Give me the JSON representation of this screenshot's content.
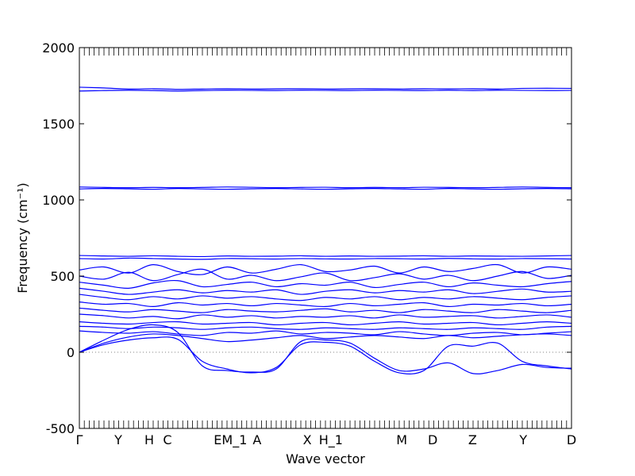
{
  "chart_data": {
    "type": "line",
    "title": "",
    "xlabel": "Wave vector",
    "ylabel": "Frequency (cm⁻¹)",
    "ylim": [
      -500,
      2000
    ],
    "xlim": [
      0,
      1
    ],
    "grid": false,
    "legend": "none",
    "line_color": "#0000ff",
    "zero_line_color": "#808080",
    "y_ticks": [
      -500,
      0,
      500,
      1000,
      1500,
      2000
    ],
    "path_labels": [
      {
        "label": "Γ",
        "x": 0.0
      },
      {
        "label": "Y",
        "x": 0.079
      },
      {
        "label": "H",
        "x": 0.142
      },
      {
        "label": "C",
        "x": 0.179
      },
      {
        "label": "EM_1",
        "x": 0.307
      },
      {
        "label": "A",
        "x": 0.361
      },
      {
        "label": "X",
        "x": 0.463
      },
      {
        "label": "H_1",
        "x": 0.511
      },
      {
        "label": "M",
        "x": 0.655
      },
      {
        "label": "D",
        "x": 0.718
      },
      {
        "label": "Z",
        "x": 0.799
      },
      {
        "label": "Y",
        "x": 0.902
      },
      {
        "label": "D",
        "x": 1.0
      }
    ],
    "x_sample": [
      0,
      0.05,
      0.1,
      0.15,
      0.2,
      0.25,
      0.3,
      0.35,
      0.4,
      0.45,
      0.5,
      0.55,
      0.6,
      0.65,
      0.7,
      0.75,
      0.8,
      0.85,
      0.9,
      0.95,
      1.0
    ],
    "series": [
      {
        "values": [
          1740,
          1735,
          1728,
          1730,
          1726,
          1728,
          1730,
          1728,
          1729,
          1730,
          1728,
          1729,
          1730,
          1728,
          1730,
          1729,
          1730,
          1728,
          1732,
          1733,
          1732
        ]
      },
      {
        "values": [
          1715,
          1718,
          1720,
          1718,
          1715,
          1718,
          1720,
          1719,
          1718,
          1720,
          1719,
          1718,
          1720,
          1719,
          1718,
          1720,
          1718,
          1720,
          1719,
          1718,
          1719
        ]
      },
      {
        "values": [
          1085,
          1082,
          1080,
          1082,
          1080,
          1082,
          1085,
          1083,
          1080,
          1082,
          1083,
          1080,
          1082,
          1080,
          1083,
          1082,
          1080,
          1082,
          1085,
          1082,
          1080
        ]
      },
      {
        "values": [
          1072,
          1075,
          1073,
          1070,
          1075,
          1072,
          1070,
          1073,
          1075,
          1072,
          1070,
          1073,
          1075,
          1072,
          1070,
          1075,
          1072,
          1070,
          1073,
          1075,
          1073
        ]
      },
      {
        "values": [
          635,
          632,
          630,
          633,
          630,
          628,
          632,
          630,
          631,
          633,
          630,
          632,
          630,
          631,
          633,
          630,
          632,
          631,
          630,
          632,
          635
        ]
      },
      {
        "values": [
          615,
          612,
          618,
          615,
          612,
          610,
          615,
          614,
          612,
          615,
          613,
          612,
          615,
          614,
          612,
          616,
          613,
          612,
          615,
          614,
          612
        ]
      },
      {
        "values": [
          540,
          560,
          520,
          575,
          530,
          510,
          560,
          520,
          545,
          575,
          530,
          540,
          565,
          520,
          560,
          530,
          550,
          575,
          520,
          560,
          545
        ]
      },
      {
        "values": [
          500,
          480,
          525,
          470,
          510,
          545,
          480,
          505,
          470,
          495,
          520,
          470,
          490,
          515,
          480,
          505,
          470,
          500,
          530,
          485,
          505
        ]
      },
      {
        "values": [
          460,
          440,
          420,
          455,
          470,
          430,
          445,
          460,
          430,
          450,
          440,
          460,
          425,
          445,
          460,
          430,
          455,
          440,
          430,
          450,
          465
        ]
      },
      {
        "values": [
          420,
          400,
          380,
          395,
          410,
          390,
          405,
          395,
          410,
          380,
          400,
          410,
          390,
          405,
          395,
          410,
          385,
          400,
          415,
          395,
          400
        ]
      },
      {
        "values": [
          380,
          360,
          345,
          365,
          350,
          370,
          355,
          365,
          350,
          340,
          360,
          350,
          365,
          345,
          360,
          350,
          365,
          355,
          345,
          360,
          370
        ]
      },
      {
        "values": [
          330,
          315,
          320,
          300,
          325,
          310,
          320,
          305,
          320,
          310,
          300,
          320,
          305,
          315,
          325,
          300,
          315,
          310,
          320,
          305,
          315
        ]
      },
      {
        "values": [
          290,
          275,
          265,
          280,
          270,
          260,
          280,
          270,
          265,
          275,
          285,
          265,
          275,
          260,
          280,
          270,
          260,
          280,
          270,
          260,
          275
        ]
      },
      {
        "values": [
          250,
          240,
          225,
          235,
          220,
          245,
          230,
          240,
          225,
          235,
          230,
          240,
          225,
          245,
          230,
          235,
          240,
          225,
          235,
          245,
          230
        ]
      },
      {
        "values": [
          200,
          190,
          185,
          195,
          200,
          185,
          190,
          195,
          180,
          190,
          195,
          180,
          190,
          200,
          185,
          190,
          195,
          180,
          190,
          200,
          190
        ]
      },
      {
        "values": [
          170,
          165,
          155,
          165,
          160,
          150,
          160,
          165,
          155,
          150,
          160,
          155,
          150,
          160,
          155,
          150,
          160,
          155,
          150,
          165,
          170
        ]
      },
      {
        "values": [
          140,
          130,
          125,
          135,
          120,
          110,
          130,
          125,
          140,
          120,
          130,
          125,
          115,
          135,
          120,
          110,
          125,
          130,
          115,
          125,
          135
        ]
      },
      {
        "values": [
          0,
          60,
          100,
          120,
          110,
          90,
          70,
          80,
          95,
          110,
          90,
          100,
          110,
          100,
          90,
          110,
          95,
          105,
          115,
          120,
          110
        ]
      },
      {
        "values": [
          0,
          80,
          150,
          180,
          130,
          -90,
          -120,
          -130,
          -110,
          70,
          80,
          60,
          -40,
          -120,
          -110,
          -70,
          -140,
          -120,
          -80,
          -100,
          -105
        ]
      },
      {
        "values": [
          0,
          50,
          80,
          95,
          85,
          -60,
          -110,
          -135,
          -100,
          50,
          65,
          40,
          -60,
          -135,
          -120,
          40,
          40,
          60,
          -60,
          -90,
          -110
        ]
      }
    ]
  }
}
